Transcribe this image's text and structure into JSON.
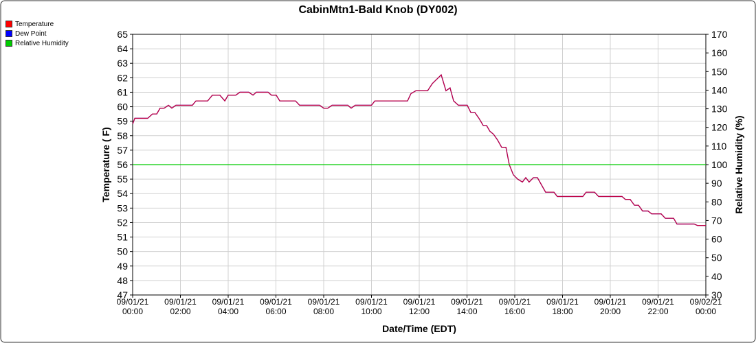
{
  "chart_data": {
    "type": "line",
    "title": "CabinMtn1-Bald Knob (DY002)",
    "x_label": "Date/Time (EDT)",
    "y_label": "Temperature ( F)",
    "y2_label": "Relative Humidity (%)",
    "legend": "top-left",
    "grid": true,
    "xlim": [
      0,
      24
    ],
    "xticks": [
      {
        "value": 0,
        "label": "09/01/21\n00:00"
      },
      {
        "value": 2,
        "label": "09/01/21\n02:00"
      },
      {
        "value": 4,
        "label": "09/01/21\n04:00"
      },
      {
        "value": 6,
        "label": "09/01/21\n06:00"
      },
      {
        "value": 8,
        "label": "09/01/21\n08:00"
      },
      {
        "value": 10,
        "label": "09/01/21\n10:00"
      },
      {
        "value": 12,
        "label": "09/01/21\n12:00"
      },
      {
        "value": 14,
        "label": "09/01/21\n14:00"
      },
      {
        "value": 16,
        "label": "09/01/21\n16:00"
      },
      {
        "value": 18,
        "label": "09/01/21\n18:00"
      },
      {
        "value": 20,
        "label": "09/01/21\n20:00"
      },
      {
        "value": 22,
        "label": "09/01/21\n22:00"
      },
      {
        "value": 24,
        "label": "09/02/21\n00:00"
      }
    ],
    "ylim": [
      47,
      65
    ],
    "yticks": [
      47,
      48,
      49,
      50,
      51,
      52,
      53,
      54,
      55,
      56,
      57,
      58,
      59,
      60,
      61,
      62,
      63,
      64,
      65
    ],
    "y2lim": [
      30,
      170
    ],
    "y2ticks": [
      30,
      40,
      50,
      60,
      70,
      80,
      90,
      100,
      110,
      120,
      130,
      140,
      150,
      160,
      170
    ],
    "x": [
      0,
      0.09,
      0.63,
      0.83,
      1.01,
      1.15,
      1.32,
      1.5,
      1.64,
      1.81,
      2.5,
      2.65,
      3.14,
      3.34,
      3.65,
      3.86,
      4.0,
      4.32,
      4.49,
      4.86,
      5.04,
      5.18,
      5.67,
      5.81,
      6.01,
      6.16,
      6.82,
      6.99,
      7.83,
      8.0,
      8.17,
      8.35,
      9.01,
      9.15,
      9.32,
      10.0,
      10.14,
      11.51,
      11.65,
      11.86,
      12.35,
      12.55,
      12.92,
      13.12,
      13.29,
      13.44,
      13.64,
      14.01,
      14.16,
      14.33,
      14.5,
      14.68,
      14.82,
      14.96,
      15.11,
      15.28,
      15.45,
      15.63,
      15.77,
      15.94,
      16.12,
      16.32,
      16.46,
      16.6,
      16.78,
      16.95,
      17.29,
      17.64,
      17.78,
      18.85,
      18.99,
      19.34,
      19.51,
      20.49,
      20.63,
      20.83,
      21.01,
      21.18,
      21.35,
      21.58,
      21.73,
      22.13,
      22.3,
      22.65,
      22.79,
      23.51,
      23.65,
      24.0
    ],
    "series": [
      {
        "name": "Temperature",
        "color": "#ff0000",
        "values": [
          58.8,
          59.2,
          59.2,
          59.5,
          59.5,
          59.9,
          59.9,
          60.1,
          59.9,
          60.1,
          60.1,
          60.4,
          60.4,
          60.8,
          60.8,
          60.4,
          60.8,
          60.8,
          61.0,
          61.0,
          60.8,
          61.0,
          61.0,
          60.8,
          60.8,
          60.4,
          60.4,
          60.1,
          60.1,
          59.9,
          59.9,
          60.1,
          60.1,
          59.9,
          60.1,
          60.1,
          60.4,
          60.4,
          60.9,
          61.1,
          61.1,
          61.6,
          62.2,
          61.1,
          61.3,
          60.4,
          60.1,
          60.1,
          59.6,
          59.6,
          59.2,
          58.7,
          58.7,
          58.3,
          58.1,
          57.7,
          57.2,
          57.2,
          56.0,
          55.3,
          55.0,
          54.8,
          55.1,
          54.8,
          55.1,
          55.1,
          54.1,
          54.1,
          53.8,
          53.8,
          54.1,
          54.1,
          53.8,
          53.8,
          53.6,
          53.6,
          53.2,
          53.2,
          52.8,
          52.8,
          52.6,
          52.6,
          52.3,
          52.3,
          51.9,
          51.9,
          51.8,
          51.8
        ]
      },
      {
        "name": "Dew Point",
        "color": "#0000ff",
        "values": [
          58.8,
          59.2,
          59.2,
          59.5,
          59.5,
          59.9,
          59.9,
          60.1,
          59.9,
          60.1,
          60.1,
          60.4,
          60.4,
          60.8,
          60.8,
          60.4,
          60.8,
          60.8,
          61.0,
          61.0,
          60.8,
          61.0,
          61.0,
          60.8,
          60.8,
          60.4,
          60.4,
          60.1,
          60.1,
          59.9,
          59.9,
          60.1,
          60.1,
          59.9,
          60.1,
          60.1,
          60.4,
          60.4,
          60.9,
          61.1,
          61.1,
          61.6,
          62.2,
          61.1,
          61.3,
          60.4,
          60.1,
          60.1,
          59.6,
          59.6,
          59.2,
          58.7,
          58.7,
          58.3,
          58.1,
          57.7,
          57.2,
          57.2,
          56.0,
          55.3,
          55.0,
          54.8,
          55.1,
          54.8,
          55.1,
          55.1,
          54.1,
          54.1,
          53.8,
          53.8,
          54.1,
          54.1,
          53.8,
          53.8,
          53.6,
          53.6,
          53.2,
          53.2,
          52.8,
          52.8,
          52.6,
          52.6,
          52.3,
          52.3,
          51.9,
          51.9,
          51.8,
          51.8
        ]
      },
      {
        "name": "Relative Humidity",
        "color": "#00cc00",
        "axis": "y2",
        "x": [
          0,
          24
        ],
        "values": [
          100,
          100
        ]
      }
    ]
  }
}
